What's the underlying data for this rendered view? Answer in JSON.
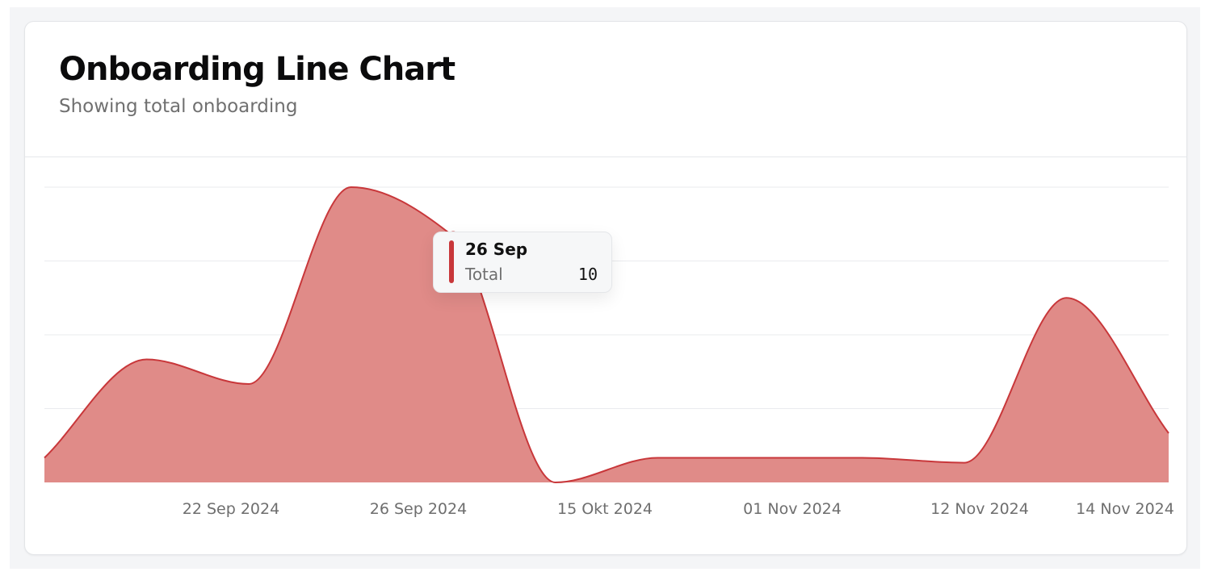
{
  "card": {
    "title": "Onboarding Line Chart",
    "subtitle": "Showing total onboarding"
  },
  "colors": {
    "accent": "#c8373a",
    "area_fill": "#e08b88",
    "grid": "#e9ebee"
  },
  "tooltip": {
    "date": "26 Sep",
    "label": "Total",
    "value": "10"
  },
  "chart_data": {
    "type": "area",
    "ticks": [
      "22 Sep 2024",
      "26 Sep 2024",
      "15 Okt 2024",
      "01 Nov 2024",
      "12 Nov 2024",
      "14 Nov 2024"
    ],
    "series": [
      {
        "values": [
          1,
          5,
          4,
          12,
          10,
          0,
          1,
          1,
          1,
          0.8,
          7.5,
          2
        ]
      }
    ],
    "ylim": [
      0,
      12
    ],
    "grid": true,
    "highlighted_point": 4
  }
}
